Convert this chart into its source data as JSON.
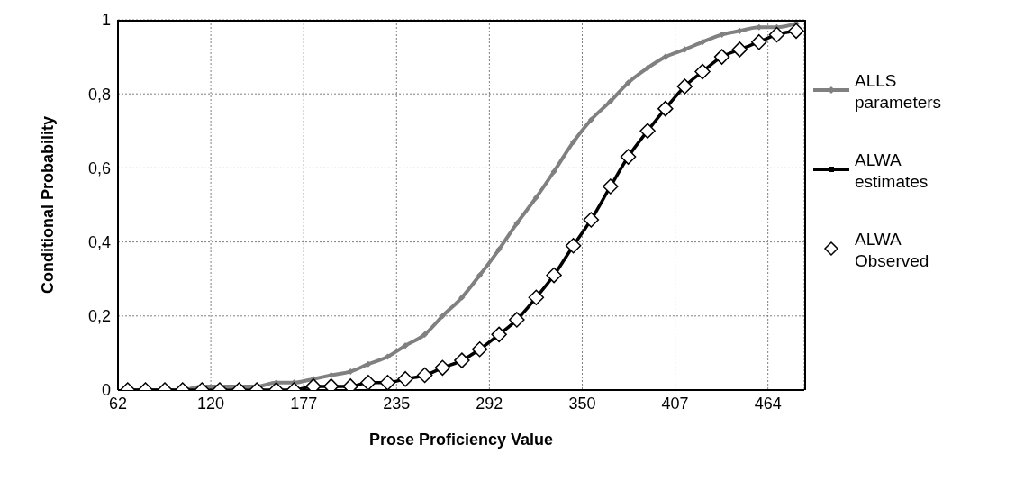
{
  "chart_data": {
    "type": "line",
    "xlabel": "Prose Proficiency Value",
    "ylabel": "Conditional Probability",
    "x": [
      68,
      79,
      91,
      102,
      114,
      125,
      137,
      148,
      160,
      171,
      183,
      194,
      206,
      217,
      229,
      240,
      252,
      263,
      275,
      286,
      298,
      309,
      321,
      332,
      344,
      355,
      367,
      378,
      390,
      401,
      413,
      424,
      436,
      447,
      459,
      470,
      482
    ],
    "xlim": [
      62,
      487
    ],
    "xticks": [
      {
        "value": 62,
        "label": "62"
      },
      {
        "value": 119.5,
        "label": "120"
      },
      {
        "value": 177,
        "label": "177"
      },
      {
        "value": 234.5,
        "label": "235"
      },
      {
        "value": 292,
        "label": "292"
      },
      {
        "value": 349.5,
        "label": "350"
      },
      {
        "value": 407,
        "label": "407"
      },
      {
        "value": 464.5,
        "label": "464"
      }
    ],
    "ylim": [
      0,
      1
    ],
    "yticks": [
      {
        "value": 0,
        "label": "0"
      },
      {
        "value": 0.2,
        "label": "0,2"
      },
      {
        "value": 0.4,
        "label": "0,4"
      },
      {
        "value": 0.6,
        "label": "0,6"
      },
      {
        "value": 0.8,
        "label": "0,8"
      },
      {
        "value": 1,
        "label": "1"
      }
    ],
    "grid": true,
    "legend": "right",
    "line_style": "solid",
    "series": [
      {
        "name": "ALLS parameters",
        "marker": "diamond",
        "color": "#808080",
        "values": [
          0,
          0,
          0,
          0,
          0.01,
          0.01,
          0.01,
          0.01,
          0.02,
          0.02,
          0.03,
          0.04,
          0.05,
          0.07,
          0.09,
          0.12,
          0.15,
          0.2,
          0.25,
          0.31,
          0.38,
          0.45,
          0.52,
          0.59,
          0.67,
          0.73,
          0.78,
          0.83,
          0.87,
          0.9,
          0.92,
          0.94,
          0.96,
          0.97,
          0.98,
          0.98,
          0.99
        ]
      },
      {
        "name": "ALWA estimates",
        "marker": "square",
        "color": "#000000",
        "values": [
          0,
          0,
          0,
          0,
          0,
          0,
          0,
          0,
          0,
          0,
          0.01,
          0.01,
          0.01,
          0.02,
          0.02,
          0.03,
          0.04,
          0.06,
          0.08,
          0.11,
          0.15,
          0.19,
          0.25,
          0.31,
          0.39,
          0.46,
          0.55,
          0.63,
          0.7,
          0.76,
          0.82,
          0.86,
          0.9,
          0.92,
          0.94,
          0.96,
          0.97
        ]
      },
      {
        "name": "ALWA Observed",
        "type": "scatter",
        "marker": "diamond",
        "color": "#000000",
        "values": [
          0,
          0,
          0,
          0,
          0,
          0,
          0,
          0,
          0,
          0,
          0.01,
          0.01,
          0.01,
          0.02,
          0.02,
          0.03,
          0.04,
          0.06,
          0.08,
          0.11,
          0.15,
          0.19,
          0.25,
          0.31,
          0.39,
          0.46,
          0.55,
          0.63,
          0.7,
          0.76,
          0.82,
          0.86,
          0.9,
          0.92,
          0.94,
          0.96,
          0.97
        ]
      }
    ]
  }
}
